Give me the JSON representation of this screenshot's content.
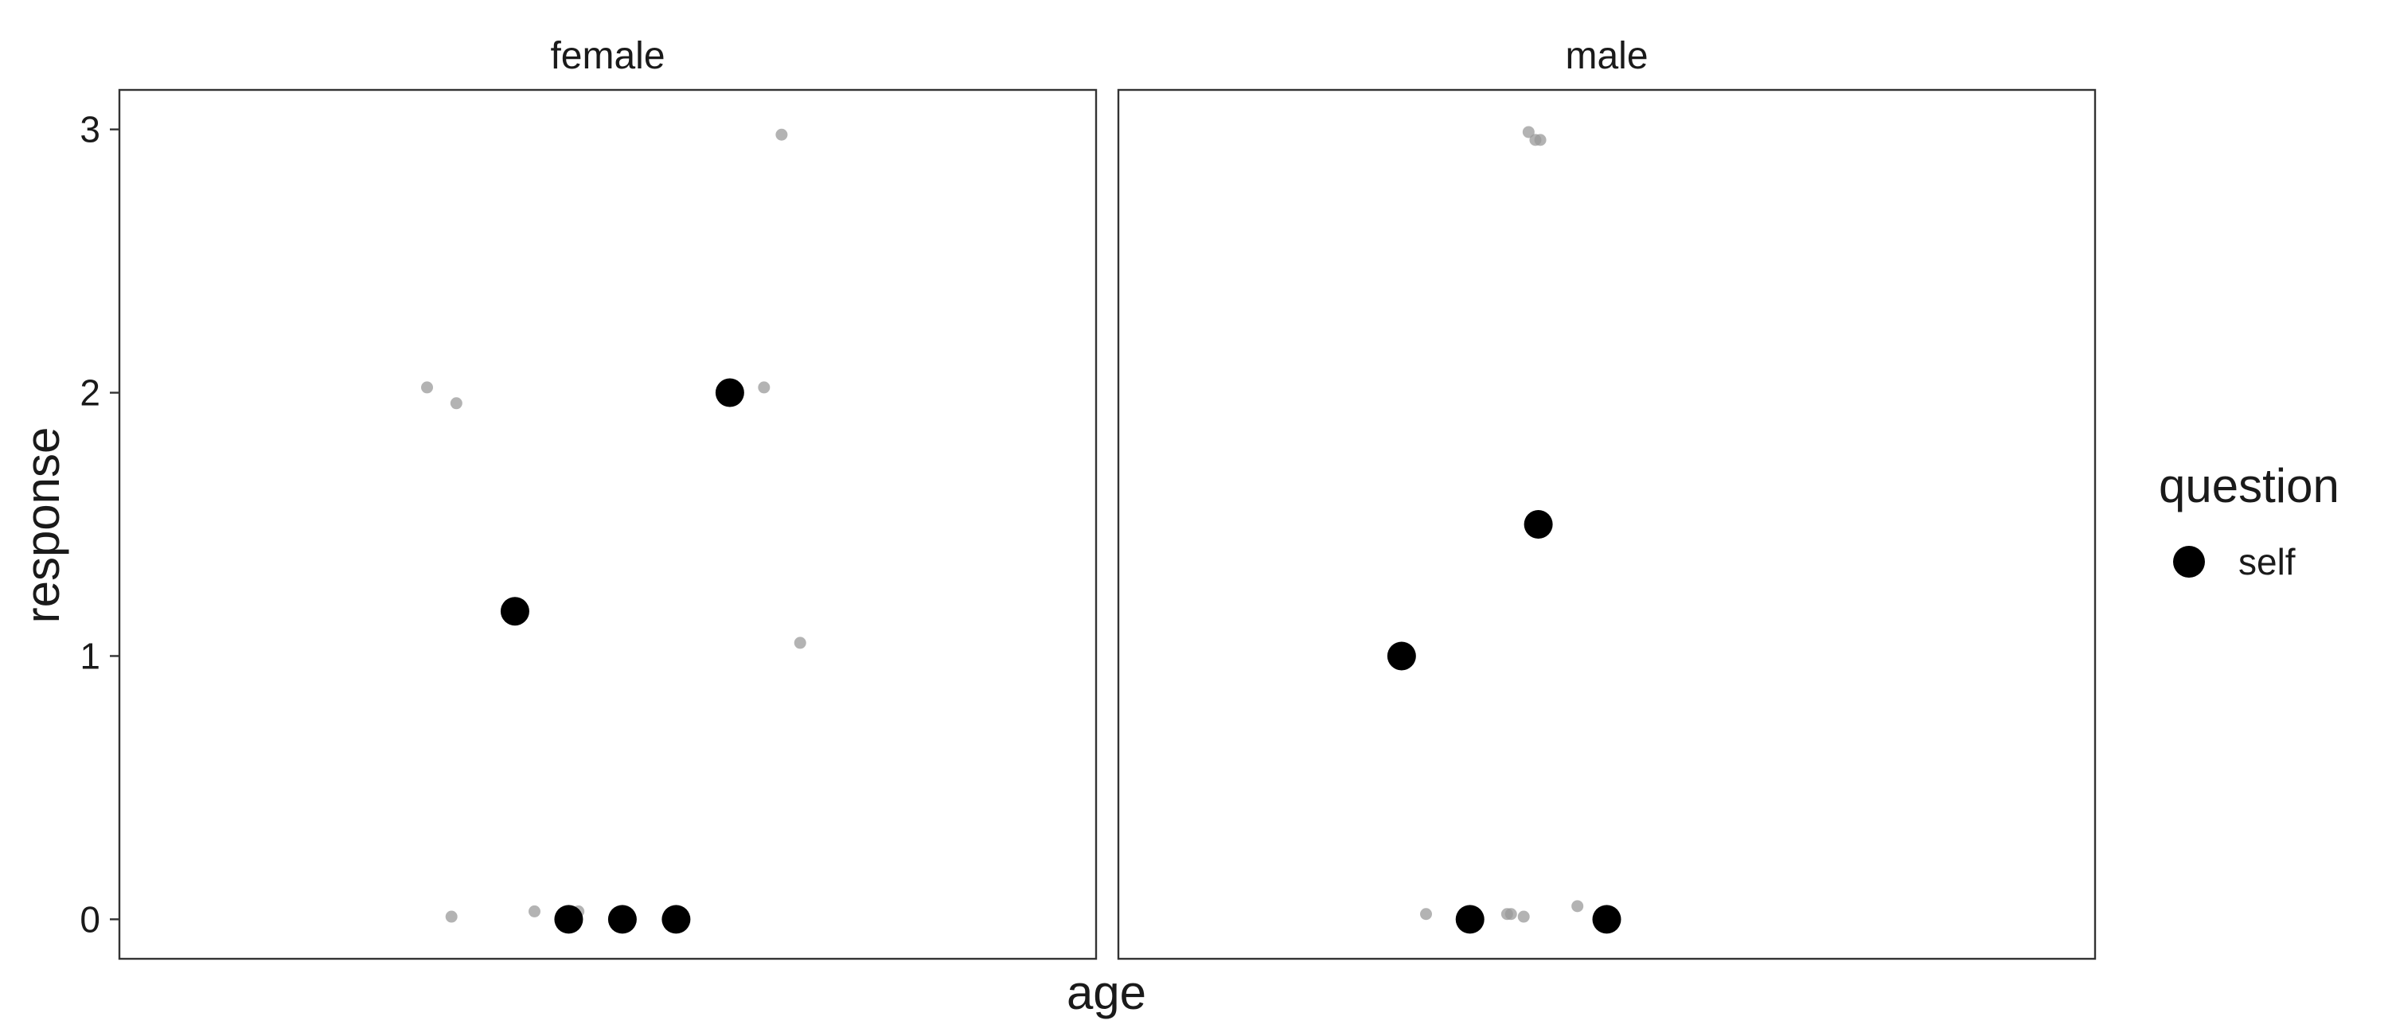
{
  "chart_data": {
    "type": "scatter",
    "xlabel": "age",
    "ylabel": "response",
    "ylim": [
      -0.15,
      3.15
    ],
    "yticks": [
      0,
      1,
      2,
      3
    ],
    "grid": false,
    "legend": {
      "title": "question",
      "position": "right",
      "entries": [
        {
          "label": "self",
          "color": "#000000"
        }
      ]
    },
    "colors": {
      "means": "#000000",
      "raw": "#9a9a9a"
    },
    "xlim": [
      0,
      1
    ],
    "panels": [
      {
        "label": "female",
        "means": [
          {
            "x": 0.405,
            "y": 1.17
          },
          {
            "x": 0.46,
            "y": 0.0
          },
          {
            "x": 0.515,
            "y": 0.0
          },
          {
            "x": 0.57,
            "y": 0.0
          },
          {
            "x": 0.625,
            "y": 2.0
          }
        ],
        "raw": [
          {
            "x": 0.315,
            "y": 2.02
          },
          {
            "x": 0.345,
            "y": 1.96
          },
          {
            "x": 0.34,
            "y": 0.01
          },
          {
            "x": 0.425,
            "y": 0.03
          },
          {
            "x": 0.47,
            "y": 0.03
          },
          {
            "x": 0.66,
            "y": 2.02
          },
          {
            "x": 0.678,
            "y": 2.98
          },
          {
            "x": 0.697,
            "y": 1.05
          }
        ]
      },
      {
        "label": "male",
        "means": [
          {
            "x": 0.29,
            "y": 1.0
          },
          {
            "x": 0.36,
            "y": 0.0
          },
          {
            "x": 0.43,
            "y": 1.5
          },
          {
            "x": 0.5,
            "y": 0.0
          }
        ],
        "raw": [
          {
            "x": 0.315,
            "y": 0.02
          },
          {
            "x": 0.398,
            "y": 0.02
          },
          {
            "x": 0.402,
            "y": 0.02
          },
          {
            "x": 0.415,
            "y": 0.01
          },
          {
            "x": 0.47,
            "y": 0.05
          },
          {
            "x": 0.42,
            "y": 2.99
          },
          {
            "x": 0.427,
            "y": 2.96
          },
          {
            "x": 0.432,
            "y": 2.96
          }
        ]
      }
    ]
  }
}
